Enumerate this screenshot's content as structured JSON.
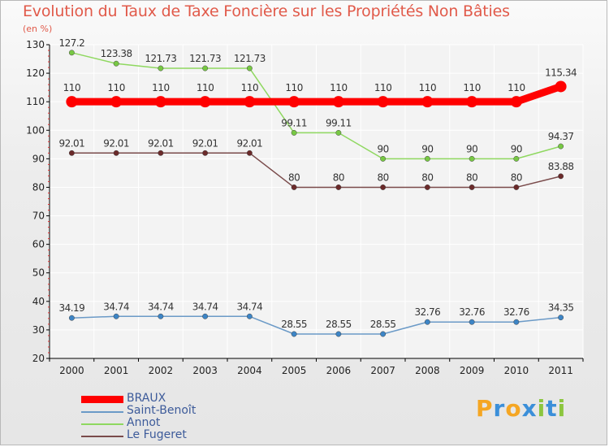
{
  "title": "Evolution du Taux de Taxe Foncière sur les Propriétés Non Bâties",
  "unit": "(en %)",
  "logo": {
    "letters": [
      "P",
      "r",
      "o",
      "x",
      "i",
      "t",
      "i"
    ],
    "colors": [
      "#f5a623",
      "#3b8fd9",
      "#f5a623",
      "#3b8fd9",
      "#8cc63f",
      "#3b8fd9",
      "#8cc63f"
    ]
  },
  "chart_data": {
    "type": "line",
    "title": "Evolution du Taux de Taxe Foncière sur les Propriétés Non Bâties",
    "ylabel": "(en %)",
    "xlabel": "",
    "ylim": [
      20,
      130
    ],
    "yticks": [
      "20",
      "30",
      "40",
      "50",
      "60",
      "70",
      "80",
      "90",
      "100",
      "110",
      "120",
      "130"
    ],
    "x": [
      "2000",
      "2001",
      "2002",
      "2003",
      "2004",
      "2005",
      "2006",
      "2007",
      "2008",
      "2009",
      "2010",
      "2011"
    ],
    "series": [
      {
        "name": "BRAUX",
        "color": "#ff0000",
        "marker": "#ff0000",
        "values": [
          110,
          110,
          110,
          110,
          110,
          110,
          110,
          110,
          110,
          110,
          110,
          115.34
        ],
        "labels": [
          "110",
          "110",
          "110",
          "110",
          "110",
          "110",
          "110",
          "110",
          "110",
          "110",
          "110",
          "115.34"
        ]
      },
      {
        "name": "Saint-Benoît",
        "color": "#6b9ac7",
        "marker": "#3d85c6",
        "values": [
          34.19,
          34.74,
          34.74,
          34.74,
          34.74,
          28.55,
          28.55,
          28.55,
          32.76,
          32.76,
          32.76,
          34.35
        ],
        "labels": [
          "34.19",
          "34.74",
          "34.74",
          "34.74",
          "34.74",
          "28.55",
          "28.55",
          "28.55",
          "32.76",
          "32.76",
          "32.76",
          "34.35"
        ]
      },
      {
        "name": "Annot",
        "color": "#8fd860",
        "marker": "#77c843",
        "values": [
          127.2,
          123.38,
          121.73,
          121.73,
          121.73,
          99.11,
          99.11,
          90,
          90,
          90,
          90,
          94.37
        ],
        "labels": [
          "127.2",
          "123.38",
          "121.73",
          "121.73",
          "121.73",
          "99.11",
          "99.11",
          "90",
          "90",
          "90",
          "90",
          "94.37"
        ]
      },
      {
        "name": "Le Fugeret",
        "color": "#7a4b4b",
        "marker": "#6b2a2a",
        "values": [
          92.01,
          92.01,
          92.01,
          92.01,
          92.01,
          80,
          80,
          80,
          80,
          80,
          80,
          83.88
        ],
        "labels": [
          "92.01",
          "92.01",
          "92.01",
          "92.01",
          "92.01",
          "80",
          "80",
          "80",
          "80",
          "80",
          "80",
          "83.88"
        ]
      }
    ]
  }
}
